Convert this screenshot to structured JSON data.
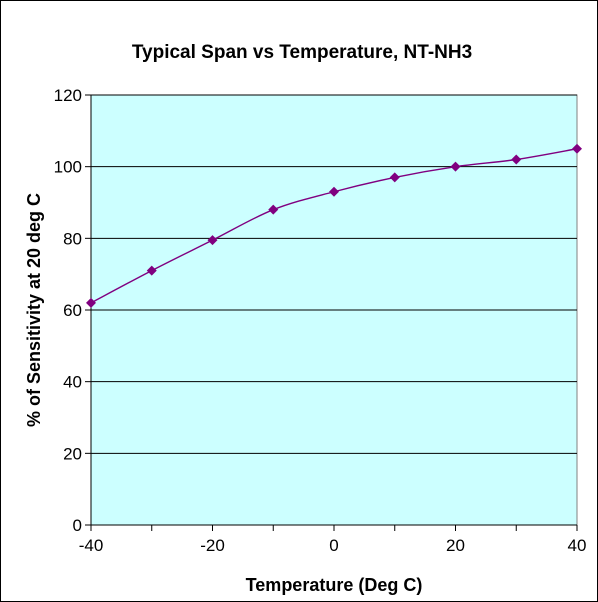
{
  "chart_data": {
    "type": "line",
    "title": "Typical Span vs Temperature, NT-NH3",
    "xlabel": "Temperature (Deg C)",
    "ylabel": "% of Sensitivity at 20 deg C",
    "xlim": [
      -40,
      40
    ],
    "ylim": [
      0,
      120
    ],
    "xticks": [
      -40,
      -20,
      0,
      20,
      40
    ],
    "yticks": [
      0,
      20,
      40,
      60,
      80,
      100,
      120
    ],
    "grid": "horizontal",
    "series": [
      {
        "x": [
          -40,
          -30,
          -20,
          -10,
          0,
          10,
          20,
          30,
          40
        ],
        "y": [
          62,
          71,
          79.5,
          88,
          93,
          97,
          100,
          102,
          105
        ]
      }
    ],
    "colors": {
      "plot_background": "#ccffff",
      "line": "#800080",
      "marker": "#800080",
      "gridline": "#000000"
    }
  }
}
